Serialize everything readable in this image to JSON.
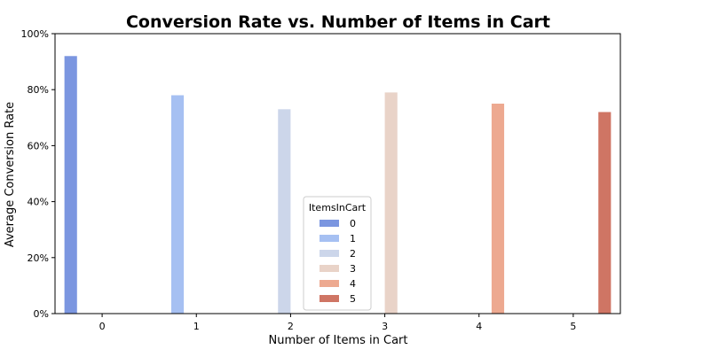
{
  "chart_data": {
    "type": "bar",
    "title": "Conversion Rate vs. Number of Items in Cart",
    "xlabel": "Number of Items in Cart",
    "ylabel": "Average Conversion Rate",
    "categories": [
      "0",
      "1",
      "2",
      "3",
      "4",
      "5"
    ],
    "yticks": [
      "0%",
      "20%",
      "40%",
      "60%",
      "80%",
      "100%"
    ],
    "ylim": [
      0,
      1.0
    ],
    "grid": false,
    "legend": {
      "title": "ItemsInCart",
      "placement": "lower-center",
      "entries": [
        "0",
        "1",
        "2",
        "3",
        "4",
        "5"
      ]
    },
    "series": [
      {
        "name": "0",
        "values": [
          0.92,
          0,
          0,
          0,
          0,
          0
        ],
        "color": "#7b96e0"
      },
      {
        "name": "1",
        "values": [
          0,
          0.78,
          0,
          0,
          0,
          0
        ],
        "color": "#a6c0f2"
      },
      {
        "name": "2",
        "values": [
          0,
          0,
          0.73,
          0,
          0,
          0
        ],
        "color": "#ccd6ea"
      },
      {
        "name": "3",
        "values": [
          0,
          0,
          0,
          0.79,
          0,
          0
        ],
        "color": "#e9d3c8"
      },
      {
        "name": "4",
        "values": [
          0,
          0,
          0,
          0,
          0.75,
          0
        ],
        "color": "#eda990"
      },
      {
        "name": "5",
        "values": [
          0,
          0,
          0,
          0,
          0,
          0.72
        ],
        "color": "#cf7564"
      }
    ]
  }
}
